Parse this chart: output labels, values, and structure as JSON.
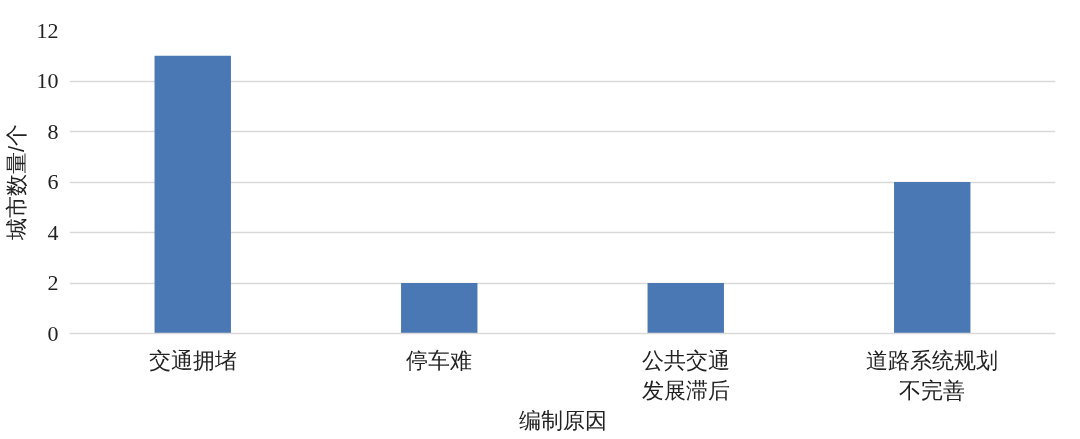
{
  "chart_data": {
    "type": "bar",
    "xlabel": "编制原因",
    "ylabel": "城市数量/个",
    "categories": [
      "交通拥堵",
      "停车难",
      "公共交通发展滞后",
      "道路系统规划不完善"
    ],
    "values": [
      11,
      2,
      2,
      6
    ],
    "color": "#4a78b5",
    "ylim": [
      0,
      12
    ],
    "yticks": [
      0,
      2,
      4,
      6,
      8,
      10,
      12
    ],
    "grid": "y"
  }
}
